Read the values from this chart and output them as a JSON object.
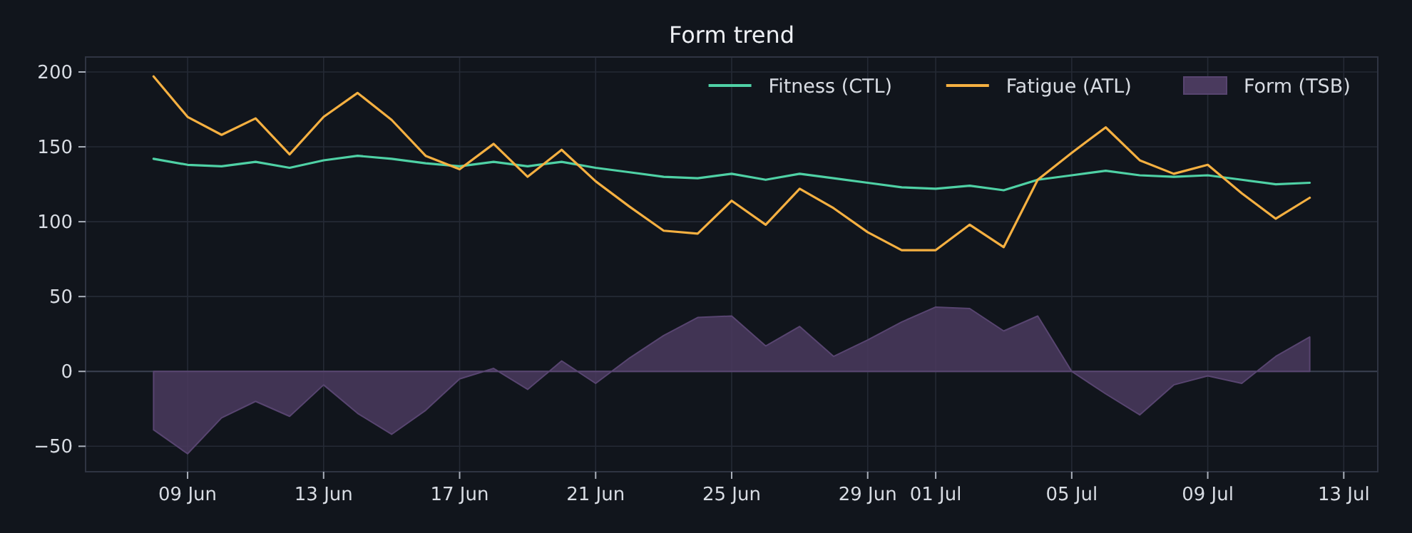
{
  "chart_data": {
    "type": "line",
    "title": "Form trend",
    "x": [
      "--06-08",
      "--06-09",
      "--06-10",
      "--06-11",
      "--06-12",
      "--06-13",
      "--06-14",
      "--06-15",
      "--06-16",
      "--06-17",
      "--06-18",
      "--06-19",
      "--06-20",
      "--06-21",
      "--06-22",
      "--06-23",
      "--06-24",
      "--06-25",
      "--06-26",
      "--06-27",
      "--06-28",
      "--06-29",
      "--06-30",
      "--07-01",
      "--07-02",
      "--07-03",
      "--07-04",
      "--07-05",
      "--07-06",
      "--07-07",
      "--07-08",
      "--07-09",
      "--07-10",
      "--07-11",
      "--07-12"
    ],
    "series": [
      {
        "name": "Fitness (CTL)",
        "color": "#4fd1a5",
        "values": [
          142,
          138,
          137,
          140,
          136,
          141,
          144,
          142,
          139,
          137,
          140,
          137,
          140,
          136,
          133,
          130,
          129,
          132,
          128,
          132,
          129,
          126,
          123,
          122,
          124,
          121,
          128,
          131,
          134,
          131,
          130,
          131,
          128,
          125,
          126
        ]
      },
      {
        "name": "Fatigue (ATL)",
        "color": "#f5b041",
        "values": [
          197,
          170,
          158,
          169,
          145,
          170,
          186,
          168,
          144,
          135,
          152,
          130,
          148,
          127,
          110,
          94,
          92,
          114,
          98,
          122,
          109,
          93,
          81,
          81,
          98,
          83,
          128,
          146,
          163,
          141,
          132,
          138,
          119,
          102,
          116
        ]
      },
      {
        "name": "Form (TSB)",
        "type": "area",
        "color": "#4a3a5e",
        "values": [
          -39,
          -55,
          -31,
          -20,
          -30,
          -9,
          -28,
          -42,
          -26,
          -5,
          2,
          -12,
          7,
          -8,
          9,
          24,
          36,
          37,
          17,
          30,
          10,
          21,
          33,
          43,
          42,
          27,
          37,
          0,
          -15,
          -29,
          -9,
          -3,
          -8,
          10,
          23
        ]
      }
    ],
    "xlim": [
      "--06-06",
      "--07-14"
    ],
    "xticks": [
      {
        "value": "--06-09",
        "label": "09 Jun"
      },
      {
        "value": "--06-13",
        "label": "13 Jun"
      },
      {
        "value": "--06-17",
        "label": "17 Jun"
      },
      {
        "value": "--06-21",
        "label": "21 Jun"
      },
      {
        "value": "--06-25",
        "label": "25 Jun"
      },
      {
        "value": "--06-29",
        "label": "29 Jun"
      },
      {
        "value": "--07-01",
        "label": "01 Jul"
      },
      {
        "value": "--07-05",
        "label": "05 Jul"
      },
      {
        "value": "--07-09",
        "label": "09 Jul"
      },
      {
        "value": "--07-13",
        "label": "13 Jul"
      }
    ],
    "ylim": [
      -67,
      210
    ],
    "yticks": [
      -50,
      0,
      50,
      100,
      150,
      200
    ],
    "grid": true,
    "legend": "top right",
    "marker": "none",
    "line_style": "solid"
  }
}
